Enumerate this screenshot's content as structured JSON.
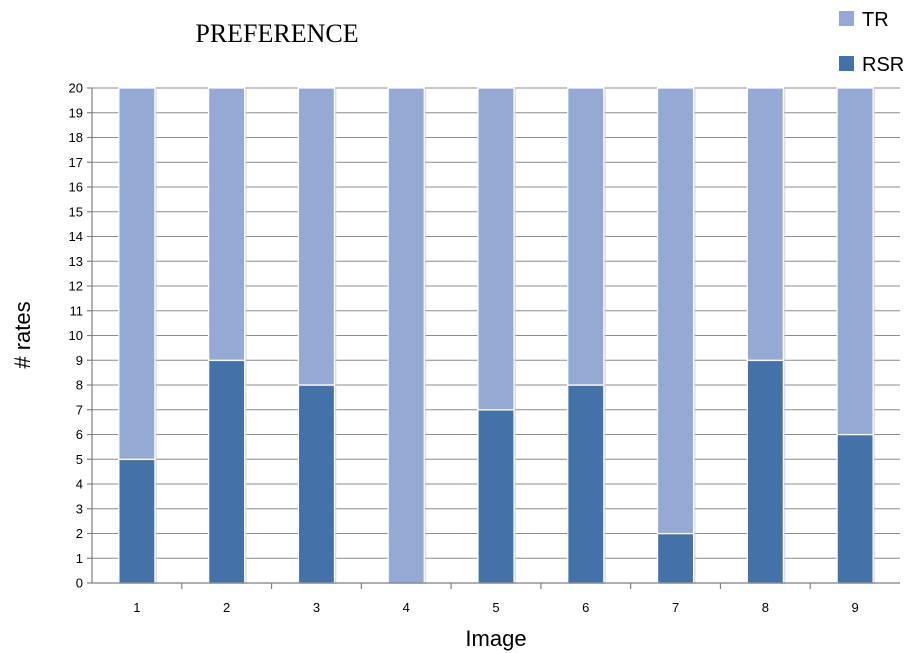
{
  "chart_data": {
    "type": "bar",
    "stacked": true,
    "title": "PREFERENCE",
    "xlabel": "Image",
    "ylabel": "# rates",
    "categories": [
      "1",
      "2",
      "3",
      "4",
      "5",
      "6",
      "7",
      "8",
      "9"
    ],
    "series": [
      {
        "name": "RSR",
        "values": [
          5,
          9,
          8,
          0,
          7,
          8,
          2,
          9,
          6
        ],
        "color": "#4472a8"
      },
      {
        "name": "TR",
        "values": [
          15,
          11,
          12,
          20,
          13,
          12,
          18,
          11,
          14
        ],
        "color": "#94a9d3"
      }
    ],
    "legend_order": [
      "TR",
      "RSR"
    ],
    "ylim": [
      0,
      20
    ],
    "yticks": [
      "0",
      "1",
      "2",
      "3",
      "4",
      "5",
      "6",
      "7",
      "8",
      "9",
      "10",
      "11",
      "12",
      "13",
      "14",
      "15",
      "16",
      "17",
      "18",
      "19",
      "20"
    ],
    "grid": true,
    "legend_position": "top-right"
  }
}
